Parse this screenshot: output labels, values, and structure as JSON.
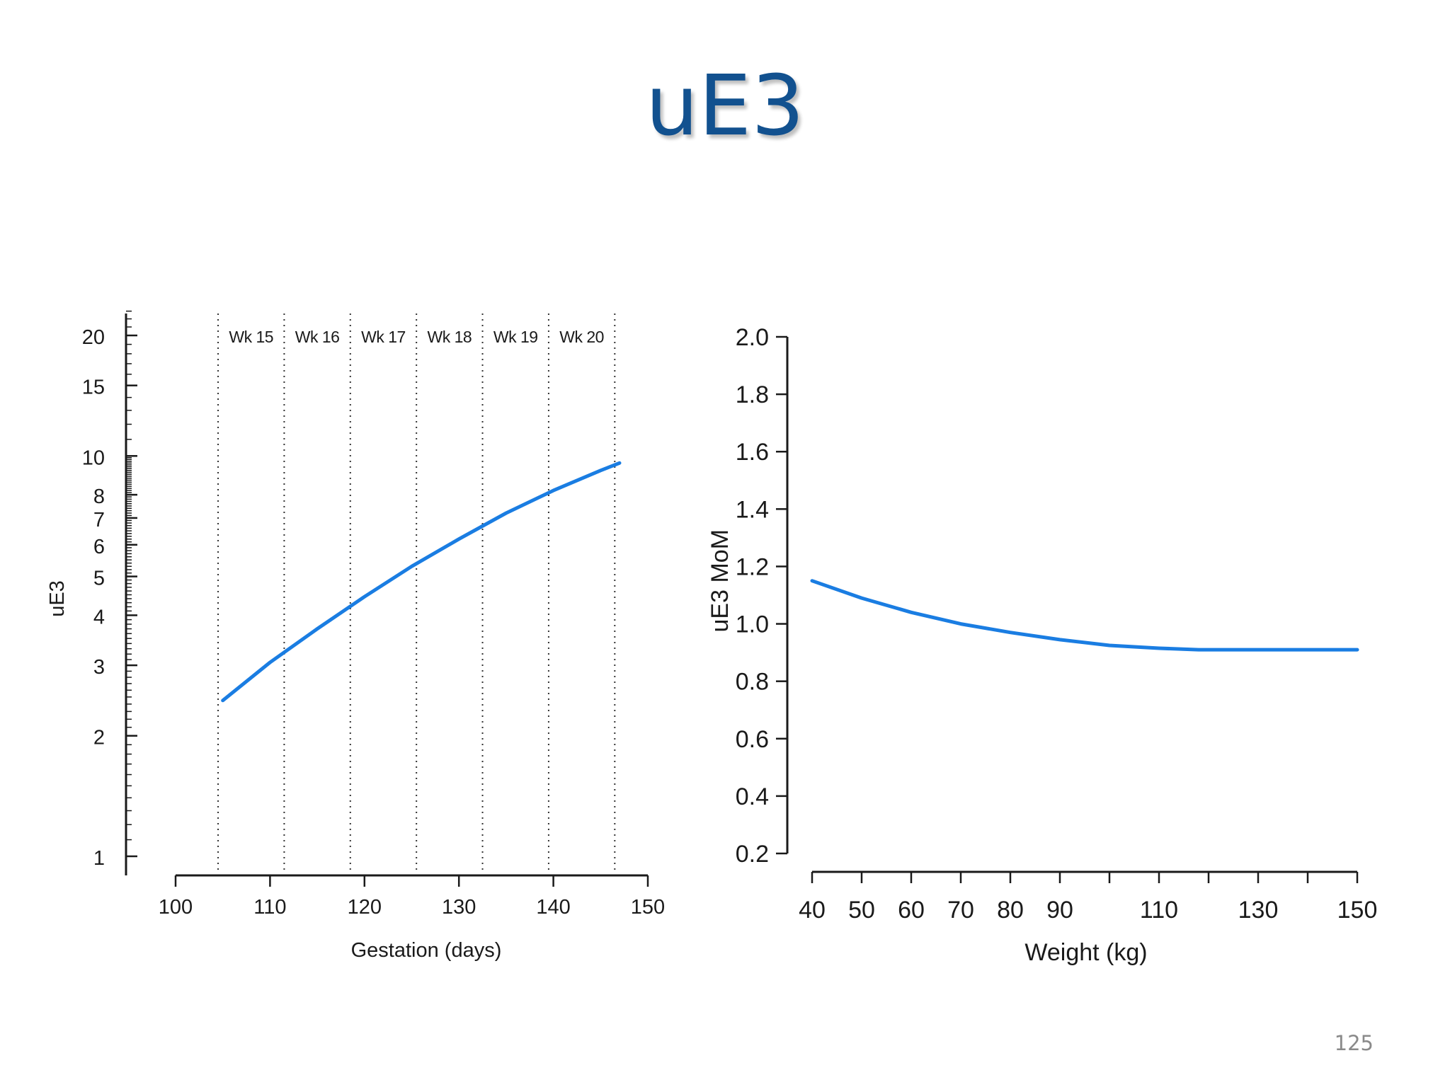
{
  "slide": {
    "title": "uE3",
    "page_number": "125"
  },
  "colors": {
    "title": "#12518f",
    "curve": "#1a7de2",
    "axis": "#1a1a1a"
  },
  "chart_data": [
    {
      "type": "line",
      "title": "",
      "xlabel": "Gestation (days)",
      "ylabel": "uE3",
      "yscale": "log",
      "xlim": [
        95,
        150
      ],
      "ylim": [
        0.95,
        23
      ],
      "x_ticks": [
        "100",
        "110",
        "120",
        "130",
        "140",
        "150"
      ],
      "y_ticks": [
        "1",
        "2",
        "3",
        "4",
        "5",
        "6",
        "7",
        "8",
        "10",
        "15",
        "20"
      ],
      "week_lines": [
        104.5,
        111.5,
        118.5,
        125.5,
        132.5,
        139.5,
        146.5
      ],
      "week_labels": [
        "Wk 15",
        "Wk 16",
        "Wk 17",
        "Wk 18",
        "Wk 19",
        "Wk 20"
      ],
      "grid": false,
      "series": [
        {
          "x": [
            105,
            110,
            115,
            120,
            125,
            130,
            135,
            140,
            145,
            147
          ],
          "y": [
            2.45,
            3.05,
            3.7,
            4.45,
            5.3,
            6.2,
            7.2,
            8.2,
            9.2,
            9.6
          ]
        }
      ]
    },
    {
      "type": "line",
      "title": "",
      "xlabel": "Weight (kg)",
      "ylabel": "uE3 MoM",
      "xlim": [
        40,
        150
      ],
      "ylim": [
        0.2,
        2.0
      ],
      "x_ticks": [
        "40",
        "50",
        "60",
        "70",
        "80",
        "90",
        "110",
        "130",
        "150"
      ],
      "x_minor_ticks": [
        100,
        120,
        140
      ],
      "y_ticks": [
        "0.2",
        "0.4",
        "0.6",
        "0.8",
        "1.0",
        "1.2",
        "1.4",
        "1.6",
        "1.8",
        "2.0"
      ],
      "grid": false,
      "series": [
        {
          "x": [
            40,
            50,
            60,
            70,
            80,
            90,
            100,
            110,
            118,
            130,
            150
          ],
          "y": [
            1.15,
            1.09,
            1.04,
            1.0,
            0.97,
            0.945,
            0.925,
            0.915,
            0.91,
            0.91,
            0.91
          ]
        }
      ]
    }
  ]
}
